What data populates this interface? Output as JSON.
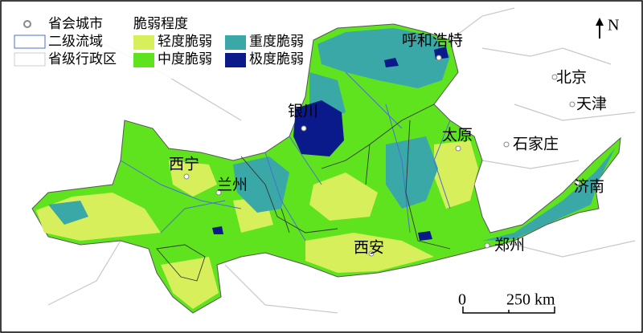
{
  "legend": {
    "city": "省会城市",
    "basin": "二级流域",
    "province": "省级行政区",
    "fragility_title": "脆弱程度",
    "classes": [
      {
        "label": "轻度脆弱",
        "color": "#d6ef5a"
      },
      {
        "label": "中度脆弱",
        "color": "#5fe31f"
      },
      {
        "label": "重度脆弱",
        "color": "#3aa8a6"
      },
      {
        "label": "极度脆弱",
        "color": "#0b1a8a"
      }
    ]
  },
  "cities": [
    "呼和浩特",
    "北京",
    "天津",
    "银川",
    "太原",
    "石家庄",
    "西宁",
    "兰州",
    "济南",
    "西安",
    "郑州"
  ],
  "north": "N",
  "scale": {
    "zero": "0",
    "label": "250 km"
  }
}
